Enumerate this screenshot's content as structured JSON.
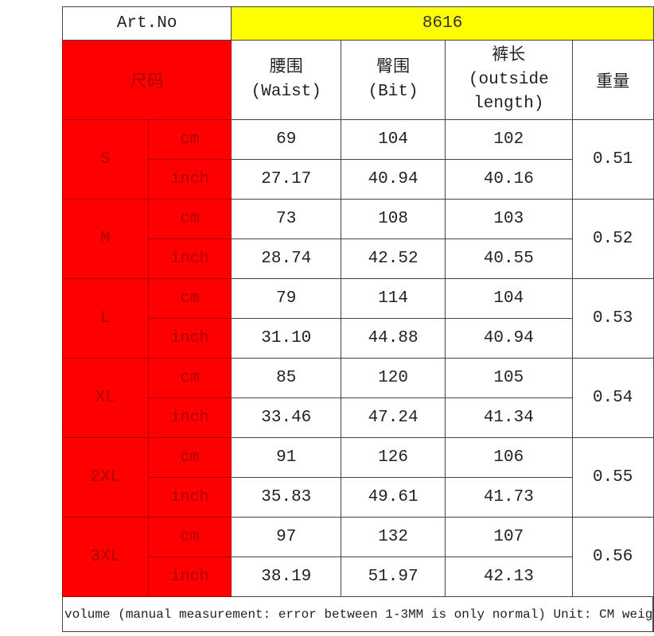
{
  "art_no_label": "Art.No",
  "art_no_value": "8616",
  "header": {
    "size_label": "尺码",
    "waist": [
      "腰围",
      "(Waist)"
    ],
    "hip": [
      "臀围",
      "(Bit)"
    ],
    "length": [
      "裤长",
      "(outside",
      "length)"
    ],
    "weight": "重量"
  },
  "sizes": [
    {
      "size": "S",
      "cm": {
        "unit": "cm",
        "waist": "69",
        "hip": "104",
        "length": "102"
      },
      "inch": {
        "unit": "inch",
        "waist": "27.17",
        "hip": "40.94",
        "length": "40.16"
      },
      "weight": "0.51"
    },
    {
      "size": "M",
      "cm": {
        "unit": "cm",
        "waist": "73",
        "hip": "108",
        "length": "103"
      },
      "inch": {
        "unit": "inch",
        "waist": "28.74",
        "hip": "42.52",
        "length": "40.55"
      },
      "weight": "0.52"
    },
    {
      "size": "L",
      "cm": {
        "unit": "cm",
        "waist": "79",
        "hip": "114",
        "length": "104"
      },
      "inch": {
        "unit": "inch",
        "waist": "31.10",
        "hip": "44.88",
        "length": "40.94"
      },
      "weight": "0.53"
    },
    {
      "size": "XL",
      "cm": {
        "unit": "cm",
        "waist": "85",
        "hip": "120",
        "length": "105"
      },
      "inch": {
        "unit": "inch",
        "waist": "33.46",
        "hip": "47.24",
        "length": "41.34"
      },
      "weight": "0.54"
    },
    {
      "size": "2XL",
      "cm": {
        "unit": "cm",
        "waist": "91",
        "hip": "126",
        "length": "106"
      },
      "inch": {
        "unit": "inch",
        "waist": "35.83",
        "hip": "49.61",
        "length": "41.73"
      },
      "weight": "0.55"
    },
    {
      "size": "3XL",
      "cm": {
        "unit": "cm",
        "waist": "97",
        "hip": "132",
        "length": "107"
      },
      "inch": {
        "unit": "inch",
        "waist": "38.19",
        "hip": "51.97",
        "length": "42.13"
      },
      "weight": "0.56"
    }
  ],
  "footer_note": "volume (manual measurement: error between 1-3MM is only normal) Unit: CM weig",
  "colors": {
    "red": "#ff0000",
    "yellow": "#ffff00"
  }
}
